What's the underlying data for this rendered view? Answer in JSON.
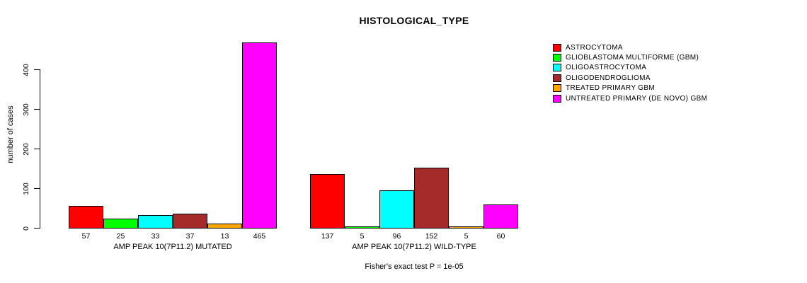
{
  "chart_data": {
    "type": "bar",
    "title": "HISTOLOGICAL_TYPE",
    "ylabel": "number of cases",
    "xlabel": "",
    "footnote": "Fisher's exact test P = 1e-05",
    "ylim": [
      0,
      465
    ],
    "yticks": [
      0,
      100,
      200,
      300,
      400
    ],
    "grid": false,
    "legend_position": "top-right",
    "categories": [
      "ASTROCYTOMA",
      "GLIOBLASTOMA MULTIFORME (GBM)",
      "OLIGOASTROCYTOMA",
      "OLIGODENDROGLIOMA",
      "TREATED PRIMARY GBM",
      "UNTREATED PRIMARY (DE NOVO) GBM"
    ],
    "series_colors": [
      "#FF0000",
      "#00FF00",
      "#00FFFF",
      "#A52A2A",
      "#FFA500",
      "#FF00FF"
    ],
    "groups": [
      {
        "label": "AMP PEAK 10(7P11.2) MUTATED",
        "values": [
          57,
          25,
          33,
          37,
          13,
          465
        ]
      },
      {
        "label": "AMP PEAK 10(7P11.2) WILD-TYPE",
        "values": [
          137,
          5,
          96,
          152,
          5,
          60
        ]
      }
    ],
    "legend": [
      {
        "label": "ASTROCYTOMA",
        "color": "#FF0000"
      },
      {
        "label": "GLIOBLASTOMA MULTIFORME (GBM)",
        "color": "#00FF00"
      },
      {
        "label": "OLIGOASTROCYTOMA",
        "color": "#00FFFF"
      },
      {
        "label": "OLIGODENDROGLIOMA",
        "color": "#A52A2A"
      },
      {
        "label": "TREATED PRIMARY GBM",
        "color": "#FFA500"
      },
      {
        "label": "UNTREATED PRIMARY (DE NOVO) GBM",
        "color": "#FF00FF"
      }
    ]
  }
}
